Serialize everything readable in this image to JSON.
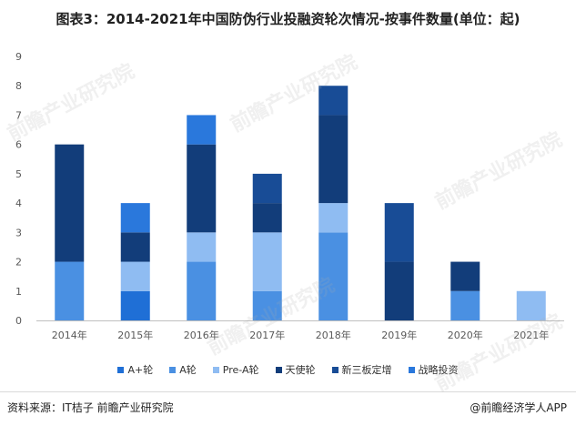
{
  "title": "图表3：2014-2021年中国防伪行业投融资轮次情况-按事件数量(单位：起)",
  "footer": {
    "source": "资料来源：IT桔子 前瞻产业研究院",
    "brand": "@前瞻经济学人APP"
  },
  "watermark": "前瞻产业研究院",
  "colors": {
    "A+轮": "#1f6fd6",
    "A轮": "#4a90e2",
    "Pre-A轮": "#8fbcf2",
    "天使轮": "#123d7a",
    "新三板定增": "#184c96",
    "战略投资": "#2a78dc",
    "axis": "#bfbfbf",
    "tick": "#595959"
  },
  "chart_data": {
    "type": "bar",
    "stacked": true,
    "title": "图表3：2014-2021年中国防伪行业投融资轮次情况-按事件数量(单位：起)",
    "categories": [
      "2014年",
      "2015年",
      "2016年",
      "2017年",
      "2018年",
      "2019年",
      "2020年",
      "2021年"
    ],
    "ylim": [
      0,
      9
    ],
    "yticks": [
      0,
      1,
      2,
      3,
      4,
      5,
      6,
      7,
      8,
      9
    ],
    "grid": false,
    "legend_position": "bottom",
    "series": [
      {
        "name": "A+轮",
        "values": [
          0,
          1,
          0,
          0,
          0,
          0,
          0,
          0
        ]
      },
      {
        "name": "A轮",
        "values": [
          2,
          0,
          2,
          1,
          3,
          0,
          1,
          0
        ]
      },
      {
        "name": "Pre-A轮",
        "values": [
          0,
          1,
          1,
          2,
          1,
          0,
          0,
          1
        ]
      },
      {
        "name": "天使轮",
        "values": [
          4,
          1,
          3,
          1,
          3,
          2,
          1,
          0
        ]
      },
      {
        "name": "新三板定增",
        "values": [
          0,
          0,
          0,
          1,
          1,
          2,
          0,
          0
        ]
      },
      {
        "name": "战略投资",
        "values": [
          0,
          1,
          1,
          0,
          0,
          0,
          0,
          0
        ]
      }
    ]
  }
}
